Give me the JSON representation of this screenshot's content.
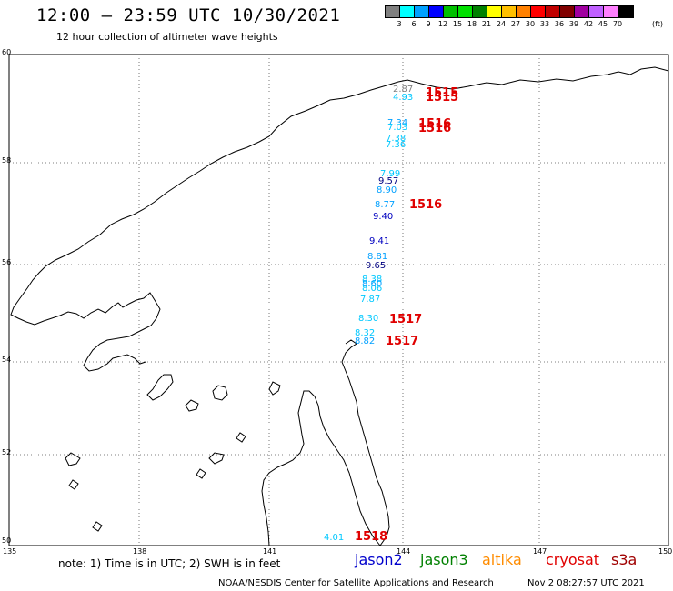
{
  "header": {
    "title": "12:00 – 23:59 UTC 10/30/2021",
    "subtitle": "12 hour collection of altimeter wave heights"
  },
  "colorbar": {
    "colors": [
      "#808080",
      "#00ffff",
      "#00a0ff",
      "#0000ff",
      "#00c000",
      "#00e000",
      "#008000",
      "#ffff00",
      "#ffc000",
      "#ff8000",
      "#ff0000",
      "#c00000",
      "#800000",
      "#a000a0",
      "#c060ff",
      "#ff80ff",
      "#000000"
    ],
    "labels": [
      "3",
      "6",
      "9",
      "12",
      "15",
      "18",
      "21",
      "24",
      "27",
      "30",
      "33",
      "36",
      "39",
      "42",
      "45",
      "70"
    ],
    "unit": "(ft)"
  },
  "axes": {
    "lat_labels": [
      "60",
      "58",
      "56",
      "54",
      "52",
      "50"
    ],
    "lon_labels": [
      "135",
      "138",
      "141",
      "144",
      "147",
      "150"
    ]
  },
  "observations": [
    {
      "value": "2.87",
      "color": "#808080"
    },
    {
      "value": "4.93",
      "color": "#00c8ff"
    },
    {
      "value": "7.34",
      "color": "#00a0ff"
    },
    {
      "value": "7.03",
      "color": "#00c8ff"
    },
    {
      "value": "7.38",
      "color": "#00c8ff"
    },
    {
      "value": "7.36",
      "color": "#00c8ff"
    },
    {
      "value": "7.99",
      "color": "#00c8ff"
    },
    {
      "value": "9.57",
      "color": "#000080"
    },
    {
      "value": "8.90",
      "color": "#00a0ff"
    },
    {
      "value": "8.77",
      "color": "#00a0ff"
    },
    {
      "value": "9.40",
      "color": "#0000c0"
    },
    {
      "value": "9.41",
      "color": "#0000c0"
    },
    {
      "value": "8.81",
      "color": "#00a0ff"
    },
    {
      "value": "9.65",
      "color": "#000080"
    },
    {
      "value": "8.38",
      "color": "#00c8ff"
    },
    {
      "value": "8.60",
      "color": "#00a0ff"
    },
    {
      "value": "8.06",
      "color": "#00c8ff"
    },
    {
      "value": "7.87",
      "color": "#00c8ff"
    },
    {
      "value": "8.30",
      "color": "#00c8ff"
    },
    {
      "value": "8.32",
      "color": "#00c8ff"
    },
    {
      "value": "8.82",
      "color": "#00a0ff"
    },
    {
      "value": "4.01",
      "color": "#00c8ff"
    }
  ],
  "time_labels": [
    "1515",
    "1515",
    "1516",
    "1516",
    "1516",
    "1517",
    "1517",
    "1518"
  ],
  "footer": {
    "note": "note:  1) Time is in UTC; 2) SWH is in feet",
    "satellites": [
      {
        "name": "jason2",
        "color": "#0000cc"
      },
      {
        "name": "jason3",
        "color": "#008000"
      },
      {
        "name": "altika",
        "color": "#ff8c00"
      },
      {
        "name": "cryosat",
        "color": "#e00000"
      },
      {
        "name": "s3a",
        "color": "#a00000"
      }
    ],
    "credit": "NOAA/NESDIS Center for Satellite Applications and Research",
    "date": "Nov  2 08:27:57 UTC 2021"
  }
}
